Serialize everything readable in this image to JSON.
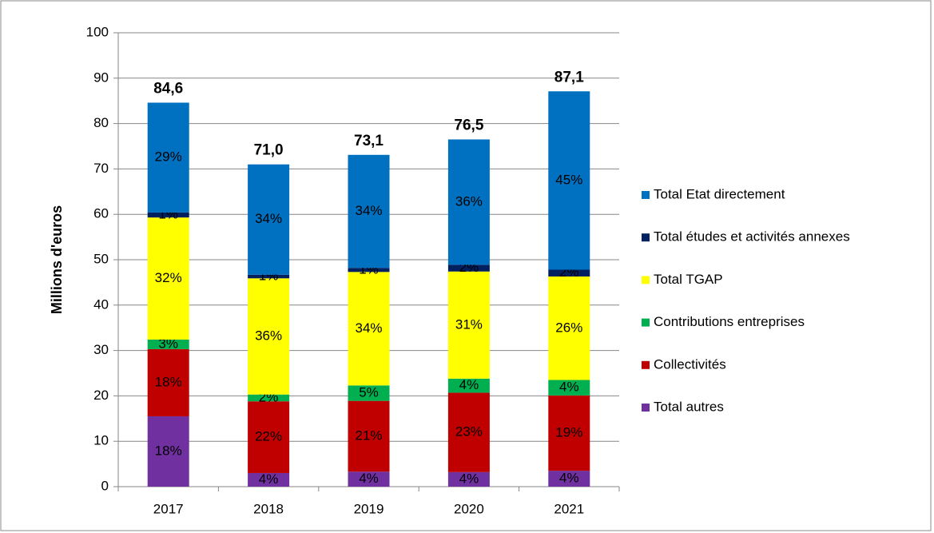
{
  "chart_data": {
    "type": "stacked_bar",
    "y_label": "Millions d'euros",
    "categories": [
      "2017",
      "2018",
      "2019",
      "2020",
      "2021"
    ],
    "ylim": [
      0,
      100
    ],
    "yticks": [
      0,
      10,
      20,
      30,
      40,
      50,
      60,
      70,
      80,
      90,
      100
    ],
    "grid": true,
    "series": [
      {
        "name": "Total autres",
        "color": "#7030a0",
        "values": [
          15.5,
          3.0,
          3.3,
          3.2,
          3.5
        ],
        "percent_labels": [
          "18%",
          "4%",
          "4%",
          "4%",
          "4%"
        ]
      },
      {
        "name": "Collectivités",
        "color": "#c00000",
        "values": [
          14.8,
          15.8,
          15.6,
          17.5,
          16.6
        ],
        "percent_labels": [
          "18%",
          "22%",
          "21%",
          "23%",
          "19%"
        ]
      },
      {
        "name": "Contributions entreprises",
        "color": "#00b050",
        "values": [
          2.1,
          1.5,
          3.4,
          3.1,
          3.4
        ],
        "percent_labels": [
          "3%",
          "2%",
          "5%",
          "4%",
          "4%"
        ]
      },
      {
        "name": "Total TGAP",
        "color": "#ffff00",
        "values": [
          26.9,
          25.6,
          25.0,
          23.6,
          22.8
        ],
        "percent_labels": [
          "32%",
          "36%",
          "34%",
          "31%",
          "26%"
        ]
      },
      {
        "name": "Total études et activités annexes",
        "color": "#002060",
        "values": [
          1.1,
          0.8,
          0.9,
          1.5,
          1.5
        ],
        "percent_labels": [
          "1%",
          "1%",
          "1%",
          "2%",
          "2%"
        ]
      },
      {
        "name": "Total Etat directement",
        "color": "#0070c0",
        "values": [
          24.2,
          24.3,
          24.9,
          27.6,
          39.3
        ],
        "percent_labels": [
          "29%",
          "34%",
          "34%",
          "36%",
          "45%"
        ]
      }
    ],
    "totals": [
      84.6,
      71.0,
      73.1,
      76.5,
      87.1
    ],
    "total_labels": [
      "84,6",
      "71,0",
      "73,1",
      "76,5",
      "87,1"
    ]
  }
}
